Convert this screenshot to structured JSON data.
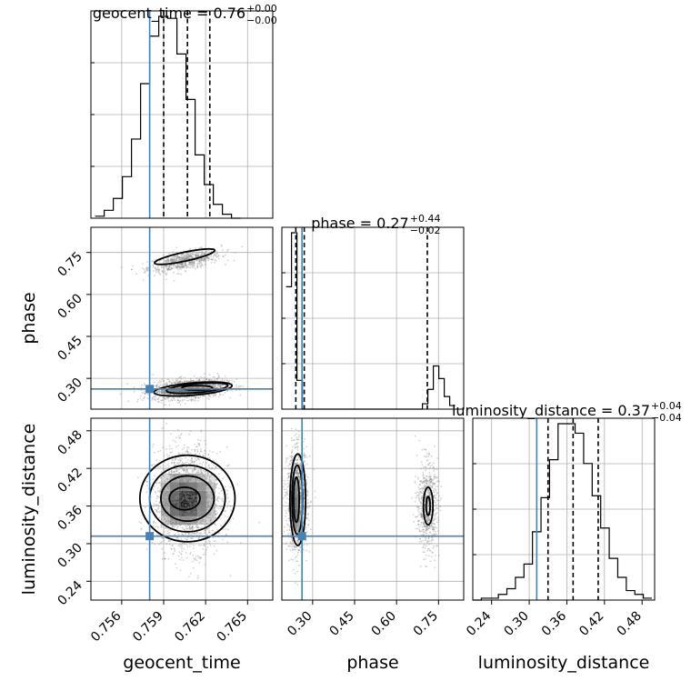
{
  "truth_color": "#4682b4",
  "chart_data": {
    "type": "corner",
    "parameters": [
      "geocent_time",
      "phase",
      "luminosity_distance"
    ],
    "truths": {
      "geocent_time": 0.758,
      "phase": 0.262,
      "luminosity_distance": 0.312
    },
    "titles": [
      {
        "param": "geocent_time",
        "text": "geocent_time = 0.76",
        "sup": "+0.00",
        "sub": "−0.00"
      },
      {
        "param": "phase",
        "text": "phase = 0.27",
        "sup": "+0.44",
        "sub": "−0.02"
      },
      {
        "param": "luminosity_distance",
        "text": "luminosity_distance = 0.37",
        "sup": "+0.04",
        "sub": "−0.04"
      }
    ],
    "ranges": {
      "geocent_time": [
        0.7538,
        0.7668
      ],
      "phase": [
        0.19,
        0.84
      ],
      "luminosity_distance": [
        0.21,
        0.5
      ]
    },
    "ticks": {
      "geocent_time": [
        "0.756",
        "0.759",
        "0.762",
        "0.765"
      ],
      "phase": [
        "0.30",
        "0.45",
        "0.60",
        "0.75"
      ],
      "luminosity_distance": [
        "0.24",
        "0.30",
        "0.36",
        "0.42",
        "0.48"
      ]
    },
    "quantiles": {
      "geocent_time": [
        0.759,
        0.7607,
        0.7623
      ],
      "phase": [
        0.24,
        0.27,
        0.71
      ],
      "luminosity_distance": [
        0.33,
        0.37,
        0.41
      ]
    },
    "histograms": {
      "geocent_time": {
        "x0": 0.7541,
        "width": 0.00065,
        "counts": [
          1,
          4,
          10,
          21,
          40,
          68,
          92,
          102,
          101,
          83,
          60,
          32,
          17,
          7,
          2,
          0
        ]
      },
      "phase": {
        "x0": 0.205,
        "width": 0.0195,
        "counts": [
          68,
          98,
          16,
          0,
          0,
          0,
          0,
          0,
          0,
          0,
          0,
          0,
          0,
          0,
          0,
          0,
          0,
          0,
          0,
          0,
          0,
          0,
          0,
          0,
          0,
          3,
          11,
          24,
          17,
          7,
          2
        ]
      },
      "luminosity_distance": {
        "x0": 0.21,
        "width": 0.0136,
        "counts": [
          0,
          1,
          1,
          3,
          6,
          12,
          19,
          36,
          54,
          74,
          93,
          93,
          88,
          72,
          55,
          38,
          22,
          12,
          5,
          3,
          1
        ]
      }
    },
    "clusters": [
      {
        "x": "geocent_time",
        "y": "phase",
        "points": [
          {
            "cx": 0.7605,
            "cy": 0.72,
            "sx": 0.0013,
            "sy": 0.02,
            "rho": 0.6,
            "n": 700
          },
          {
            "cx": 0.7608,
            "cy": 0.262,
            "sx": 0.0013,
            "sy": 0.018,
            "rho": 0.3,
            "n": 1500
          }
        ]
      },
      {
        "x": "geocent_time",
        "y": "luminosity_distance",
        "points": [
          {
            "cx": 0.7607,
            "cy": 0.37,
            "sx": 0.0012,
            "sy": 0.04,
            "rho": 0.0,
            "n": 2000
          }
        ]
      },
      {
        "x": "phase",
        "y": "luminosity_distance",
        "points": [
          {
            "cx": 0.245,
            "cy": 0.37,
            "sx": 0.018,
            "sy": 0.04,
            "rho": 0.0,
            "n": 1300
          },
          {
            "cx": 0.71,
            "cy": 0.36,
            "sx": 0.018,
            "sy": 0.035,
            "rho": 0.0,
            "n": 700
          }
        ]
      }
    ],
    "density_grids": [
      {
        "x": "geocent_time",
        "y": "phase",
        "x0": 0.7588,
        "dx": 0.00065,
        "y0": 0.245,
        "dy": 0.017,
        "values": [
          [
            0.25,
            0.5,
            0.7,
            0.85,
            0.7,
            0.35
          ]
        ]
      },
      {
        "x": "geocent_time",
        "y": "luminosity_distance",
        "x0": 0.7588,
        "dx": 0.00065,
        "y0": 0.33,
        "dy": 0.0136,
        "values": [
          [
            0.15,
            0.3,
            0.35,
            0.3,
            0.15,
            0.1
          ],
          [
            0.25,
            0.55,
            0.7,
            0.65,
            0.4,
            0.15
          ],
          [
            0.3,
            0.7,
            1.0,
            0.85,
            0.45,
            0.2
          ],
          [
            0.3,
            0.6,
            0.85,
            0.9,
            0.45,
            0.2
          ],
          [
            0.2,
            0.45,
            0.6,
            0.5,
            0.35,
            0.15
          ],
          [
            0.1,
            0.25,
            0.3,
            0.25,
            0.15,
            0.05
          ]
        ]
      },
      {
        "x": "phase",
        "y": "luminosity_distance",
        "x0": 0.23,
        "dx": 0.012,
        "y0": 0.32,
        "dy": 0.0136,
        "values": [
          [
            0.3,
            0.25
          ],
          [
            0.55,
            0.4
          ],
          [
            0.75,
            0.5
          ],
          [
            0.65,
            0.45
          ],
          [
            0.45,
            0.3
          ],
          [
            0.25,
            0.15
          ]
        ]
      }
    ],
    "contours": [
      {
        "x": "geocent_time",
        "y": "phase",
        "rings": [
          {
            "cx": 0.7605,
            "cy": 0.735,
            "rx": 0.0022,
            "ry": 0.016,
            "rot": -12
          },
          {
            "cx": 0.7611,
            "cy": 0.262,
            "rx": 0.0028,
            "ry": 0.022,
            "rot": -5
          },
          {
            "cx": 0.7614,
            "cy": 0.265,
            "rx": 0.0022,
            "ry": 0.016,
            "rot": -5
          },
          {
            "cx": 0.7614,
            "cy": 0.266,
            "rx": 0.0011,
            "ry": 0.008,
            "rot": 0
          }
        ]
      },
      {
        "x": "geocent_time",
        "y": "luminosity_distance",
        "rings": [
          {
            "cx": 0.7607,
            "cy": 0.372,
            "rx": 0.0034,
            "ry": 0.069,
            "rot": 0
          },
          {
            "cx": 0.7607,
            "cy": 0.372,
            "rx": 0.0027,
            "ry": 0.053,
            "rot": 0
          },
          {
            "cx": 0.7607,
            "cy": 0.372,
            "rx": 0.0019,
            "ry": 0.036,
            "rot": 0
          },
          {
            "cx": 0.7605,
            "cy": 0.372,
            "rx": 0.0011,
            "ry": 0.018,
            "rot": 0
          }
        ]
      },
      {
        "x": "phase",
        "y": "luminosity_distance",
        "rings": [
          {
            "cx": 0.247,
            "cy": 0.37,
            "rx": 0.028,
            "ry": 0.073,
            "rot": 0
          },
          {
            "cx": 0.245,
            "cy": 0.37,
            "rx": 0.019,
            "ry": 0.055,
            "rot": 0
          },
          {
            "cx": 0.242,
            "cy": 0.37,
            "rx": 0.01,
            "ry": 0.036,
            "rot": 0
          },
          {
            "cx": 0.713,
            "cy": 0.36,
            "rx": 0.017,
            "ry": 0.03,
            "rot": 0
          },
          {
            "cx": 0.713,
            "cy": 0.36,
            "rx": 0.007,
            "ry": 0.015,
            "rot": 0
          }
        ]
      }
    ]
  }
}
